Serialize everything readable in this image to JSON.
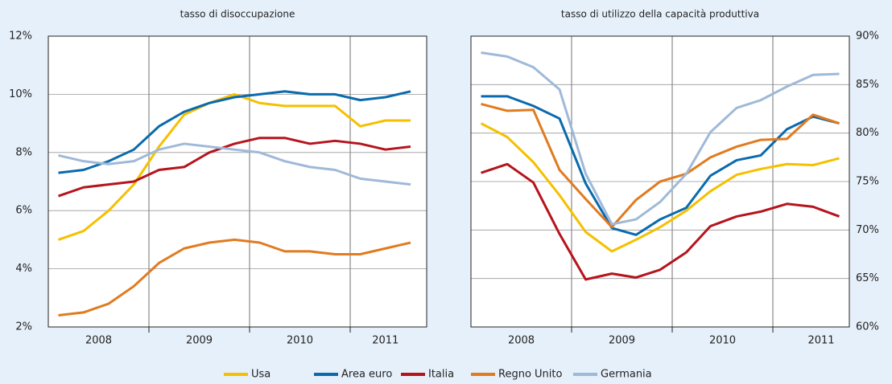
{
  "chart_data": [
    {
      "type": "line",
      "title": "tasso di disoccupazione",
      "x": [
        2008.1,
        2008.35,
        2008.6,
        2008.85,
        2009.1,
        2009.35,
        2009.6,
        2009.85,
        2010.1,
        2010.35,
        2010.6,
        2010.85,
        2011.1,
        2011.35,
        2011.6
      ],
      "xlim": [
        2008,
        2011.76
      ],
      "xticks": [
        {
          "value": 2008.5,
          "label": "2008"
        },
        {
          "value": 2009.5,
          "label": "2009"
        },
        {
          "value": 2010.5,
          "label": "2010"
        },
        {
          "value": 2011.35,
          "label": "2011"
        }
      ],
      "xgrid": [
        2009,
        2010,
        2011
      ],
      "ylim": [
        2,
        12
      ],
      "yticks": [
        {
          "value": 2,
          "label": "2%"
        },
        {
          "value": 4,
          "label": "4%"
        },
        {
          "value": 6,
          "label": "6%"
        },
        {
          "value": 8,
          "label": "8%"
        },
        {
          "value": 10,
          "label": "10%"
        },
        {
          "value": 12,
          "label": "12%"
        }
      ],
      "y_axis_side": "left",
      "grid": true,
      "series": [
        {
          "name": "Usa",
          "color": "#f5c000",
          "values": [
            5.0,
            5.3,
            6.0,
            6.9,
            8.2,
            9.3,
            9.7,
            10.0,
            9.7,
            9.6,
            9.6,
            9.6,
            8.9,
            9.1,
            9.1
          ]
        },
        {
          "name": "Area euro",
          "color": "#0a6aad",
          "values": [
            7.3,
            7.4,
            7.7,
            8.1,
            8.9,
            9.4,
            9.7,
            9.9,
            10.0,
            10.1,
            10.0,
            10.0,
            9.8,
            9.9,
            10.1
          ]
        },
        {
          "name": "Italia",
          "color": "#b5141c",
          "values": [
            6.5,
            6.8,
            6.9,
            7.0,
            7.4,
            7.5,
            8.0,
            8.3,
            8.5,
            8.5,
            8.3,
            8.4,
            8.3,
            8.1,
            8.2
          ]
        },
        {
          "name": "Regno Unito",
          "color": "#e07b20",
          "values": [
            2.4,
            2.5,
            2.8,
            3.4,
            4.2,
            4.7,
            4.9,
            5.0,
            4.9,
            4.6,
            4.6,
            4.5,
            4.5,
            4.7,
            4.9
          ]
        },
        {
          "name": "Germania",
          "color": "#9fb9d8",
          "values": [
            7.9,
            7.7,
            7.6,
            7.7,
            8.1,
            8.3,
            8.2,
            8.1,
            8.0,
            7.7,
            7.5,
            7.4,
            7.1,
            7.0,
            6.9
          ]
        }
      ]
    },
    {
      "type": "line",
      "title": "tasso di utilizzo della capacità produttiva",
      "x": [
        2008.1,
        2008.36,
        2008.62,
        2008.88,
        2009.14,
        2009.4,
        2009.64,
        2009.88,
        2010.14,
        2010.38,
        2010.64,
        2010.88,
        2011.14,
        2011.4,
        2011.66
      ],
      "xlim": [
        2008,
        2011.76
      ],
      "xticks": [
        {
          "value": 2008.5,
          "label": "2008"
        },
        {
          "value": 2009.5,
          "label": "2009"
        },
        {
          "value": 2010.5,
          "label": "2010"
        },
        {
          "value": 2011.48,
          "label": "2011"
        }
      ],
      "xgrid": [
        2009,
        2010,
        2011
      ],
      "ylim": [
        60,
        90
      ],
      "yticks": [
        {
          "value": 60,
          "label": "60%"
        },
        {
          "value": 65,
          "label": "65%"
        },
        {
          "value": 70,
          "label": "70%"
        },
        {
          "value": 75,
          "label": "75%"
        },
        {
          "value": 80,
          "label": "80%"
        },
        {
          "value": 85,
          "label": "85%"
        },
        {
          "value": 90,
          "label": "90%"
        }
      ],
      "y_axis_side": "right",
      "grid": true,
      "series": [
        {
          "values": [
            81.0,
            79.6,
            77.0,
            73.6,
            69.8,
            67.8,
            69.0,
            70.3,
            72.0,
            74.0,
            75.7,
            76.3,
            76.8,
            76.7,
            77.4
          ]
        },
        {
          "values": [
            83.8,
            83.8,
            82.8,
            81.5,
            74.8,
            70.2,
            69.5,
            71.1,
            72.3,
            75.6,
            77.2,
            77.7,
            80.4,
            81.7,
            81.0
          ]
        },
        {
          "values": [
            75.9,
            76.8,
            74.9,
            69.6,
            64.9,
            65.5,
            65.1,
            65.9,
            67.7,
            70.4,
            71.4,
            71.9,
            72.7,
            72.4,
            71.4
          ]
        },
        {
          "values": [
            83.0,
            82.3,
            82.4,
            76.2,
            73.2,
            70.3,
            73.1,
            75.0,
            75.8,
            77.5,
            78.6,
            79.3,
            79.4,
            81.9,
            81.0
          ]
        },
        {
          "values": [
            88.3,
            87.9,
            86.8,
            84.5,
            75.8,
            70.6,
            71.1,
            72.9,
            75.8,
            80.1,
            82.6,
            83.4,
            84.8,
            86.0,
            86.1
          ]
        }
      ]
    }
  ]
}
